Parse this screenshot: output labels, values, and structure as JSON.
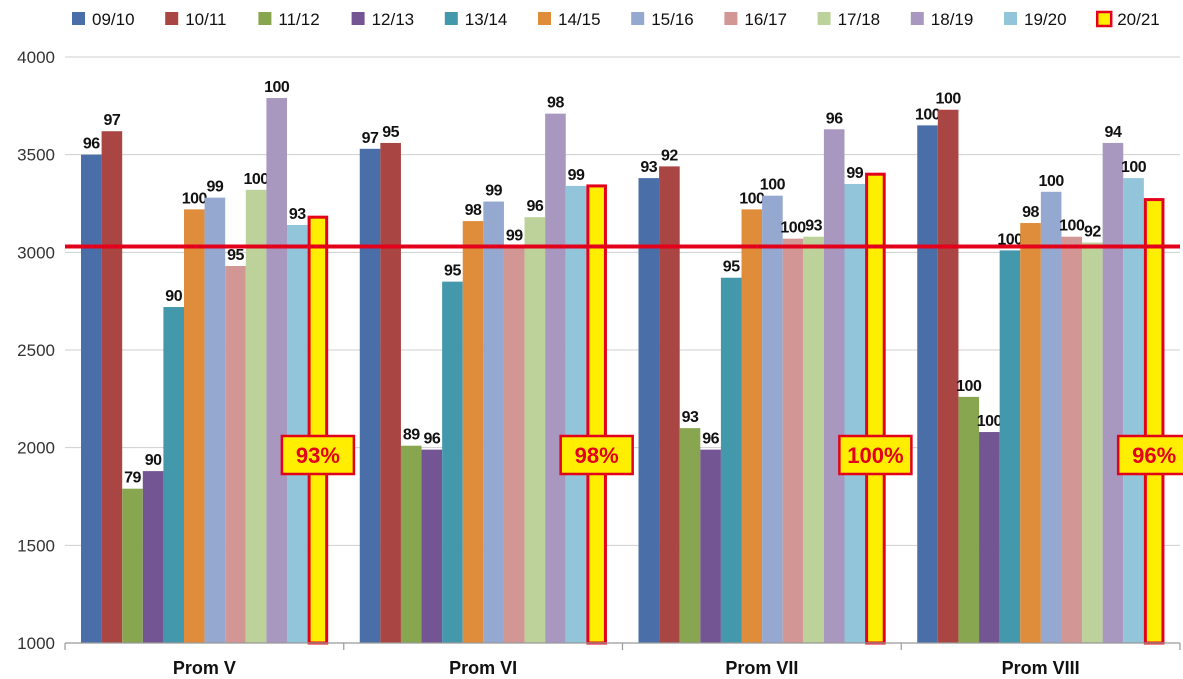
{
  "chart_data": {
    "type": "bar",
    "categories": [
      "Prom V",
      "Prom VI",
      "Prom VII",
      "Prom VIII"
    ],
    "ylim": [
      1000,
      4000
    ],
    "yticks": [
      1000,
      1500,
      2000,
      2500,
      3000,
      3500,
      4000
    ],
    "reference_line": 3030,
    "grid": true,
    "legend_position": "top",
    "highlight_series": "20/21",
    "highlight_color": "#ffee00",
    "highlight_border": "#e2001a",
    "reference_color": "#e2001a",
    "series": [
      {
        "name": "09/10",
        "color": "#4a6fa8",
        "values": [
          3500,
          3530,
          3380,
          3650
        ],
        "labels": [
          "96",
          "97",
          "93",
          "100"
        ]
      },
      {
        "name": "10/11",
        "color": "#a94543",
        "values": [
          3620,
          3560,
          3440,
          3730
        ],
        "labels": [
          "97",
          "95",
          "92",
          "100"
        ]
      },
      {
        "name": "11/12",
        "color": "#88a550",
        "values": [
          1790,
          2010,
          2100,
          2260
        ],
        "labels": [
          "79",
          "89",
          "93",
          "100"
        ]
      },
      {
        "name": "12/13",
        "color": "#735593",
        "values": [
          1880,
          1990,
          1990,
          2080
        ],
        "labels": [
          "90",
          "96",
          "96",
          "100"
        ]
      },
      {
        "name": "13/14",
        "color": "#4498ab",
        "values": [
          2720,
          2850,
          2870,
          3010
        ],
        "labels": [
          "90",
          "95",
          "95",
          "100"
        ]
      },
      {
        "name": "14/15",
        "color": "#df8d3b",
        "values": [
          3220,
          3160,
          3220,
          3150
        ],
        "labels": [
          "100",
          "98",
          "100",
          "98"
        ]
      },
      {
        "name": "15/16",
        "color": "#94a8d0",
        "values": [
          3280,
          3260,
          3290,
          3310
        ],
        "labels": [
          "99",
          "99",
          "100",
          "100"
        ]
      },
      {
        "name": "16/17",
        "color": "#d29694",
        "values": [
          2930,
          3030,
          3070,
          3080
        ],
        "labels": [
          "95",
          "99",
          "100",
          "100"
        ]
      },
      {
        "name": "17/18",
        "color": "#bdd29b",
        "values": [
          3320,
          3180,
          3080,
          3050
        ],
        "labels": [
          "100",
          "96",
          "93",
          "92"
        ]
      },
      {
        "name": "18/19",
        "color": "#a898c0",
        "values": [
          3790,
          3710,
          3630,
          3560
        ],
        "labels": [
          "100",
          "98",
          "96",
          "94"
        ]
      },
      {
        "name": "19/20",
        "color": "#92c4da",
        "values": [
          3140,
          3340,
          3350,
          3380
        ],
        "labels": [
          "93",
          "99",
          "99",
          "100"
        ]
      },
      {
        "name": "20/21",
        "color": "#ffee00",
        "values": [
          3180,
          3340,
          3400,
          3270
        ],
        "labels": [
          "",
          "",
          "",
          ""
        ]
      }
    ],
    "percent_labels": [
      "93%",
      "98%",
      "100%",
      "96%"
    ]
  }
}
